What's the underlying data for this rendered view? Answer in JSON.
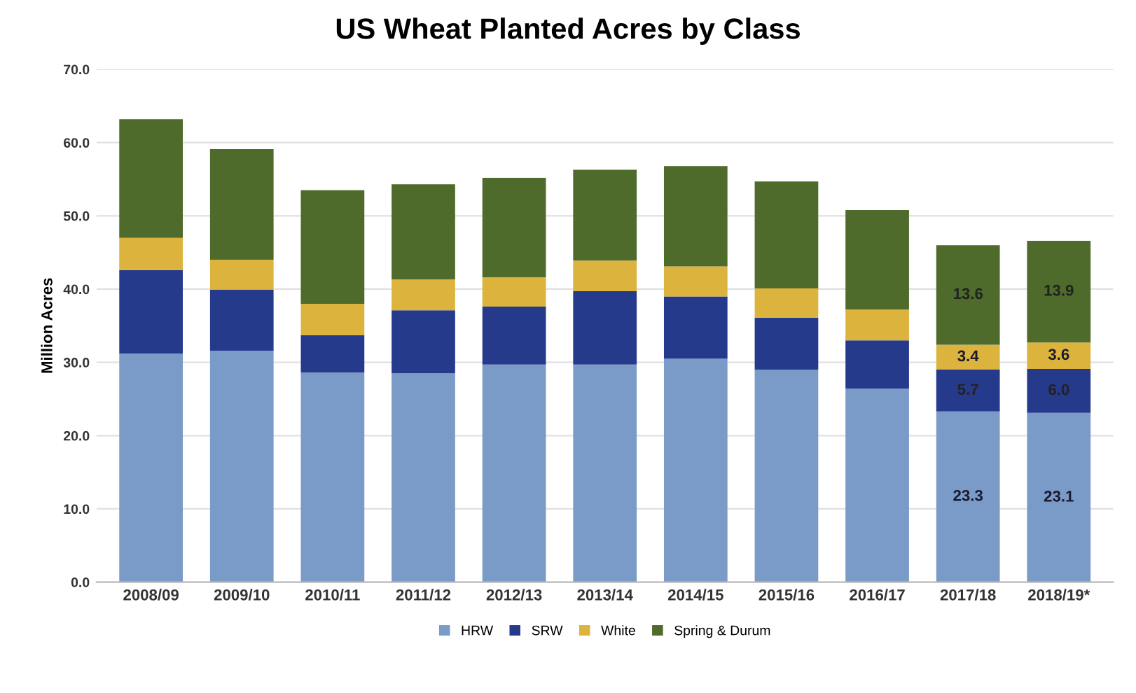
{
  "chart_data": {
    "type": "bar",
    "stacked": true,
    "title": "US Wheat Planted Acres by Class",
    "ylabel": "Million Acres",
    "categories": [
      "2008/09",
      "2009/10",
      "2010/11",
      "2011/12",
      "2012/13",
      "2013/14",
      "2014/15",
      "2015/16",
      "2016/17",
      "2017/18",
      "2018/19*"
    ],
    "series": [
      {
        "name": "HRW",
        "color": "#7a9ac8",
        "values": [
          31.2,
          31.6,
          28.6,
          28.5,
          29.7,
          29.7,
          30.5,
          29.0,
          26.4,
          23.3,
          23.1
        ],
        "value_labels": [
          null,
          null,
          null,
          null,
          null,
          null,
          null,
          null,
          null,
          "23.3",
          "23.1"
        ]
      },
      {
        "name": "SRW",
        "color": "#263a8c",
        "values": [
          11.4,
          8.3,
          5.1,
          8.6,
          7.9,
          10.0,
          8.5,
          7.1,
          6.6,
          5.7,
          6.0
        ],
        "value_labels": [
          null,
          null,
          null,
          null,
          null,
          null,
          null,
          null,
          null,
          "5.7",
          "6.0"
        ]
      },
      {
        "name": "White",
        "color": "#dcb33c",
        "values": [
          4.4,
          4.1,
          4.3,
          4.2,
          4.0,
          4.2,
          4.1,
          4.0,
          4.2,
          3.4,
          3.6
        ],
        "value_labels": [
          null,
          null,
          null,
          null,
          null,
          null,
          null,
          null,
          null,
          "3.4",
          "3.6"
        ]
      },
      {
        "name": "Spring & Durum",
        "color": "#4e6b2b",
        "values": [
          16.2,
          15.1,
          15.5,
          13.0,
          13.6,
          12.4,
          13.7,
          14.6,
          13.6,
          13.6,
          13.9
        ],
        "value_labels": [
          null,
          null,
          null,
          null,
          null,
          null,
          null,
          null,
          null,
          "13.6",
          "13.9"
        ]
      }
    ],
    "ylim": [
      0,
      70
    ],
    "yticks": [
      {
        "value": 0,
        "label": "0.0"
      },
      {
        "value": 10,
        "label": "10.0"
      },
      {
        "value": 20,
        "label": "20.0"
      },
      {
        "value": 30,
        "label": "30.0"
      },
      {
        "value": 40,
        "label": "40.0"
      },
      {
        "value": 50,
        "label": "50.0"
      },
      {
        "value": 60,
        "label": "60.0"
      },
      {
        "value": 70,
        "label": "70.0"
      }
    ],
    "grid": "y",
    "legend": "bottom"
  }
}
